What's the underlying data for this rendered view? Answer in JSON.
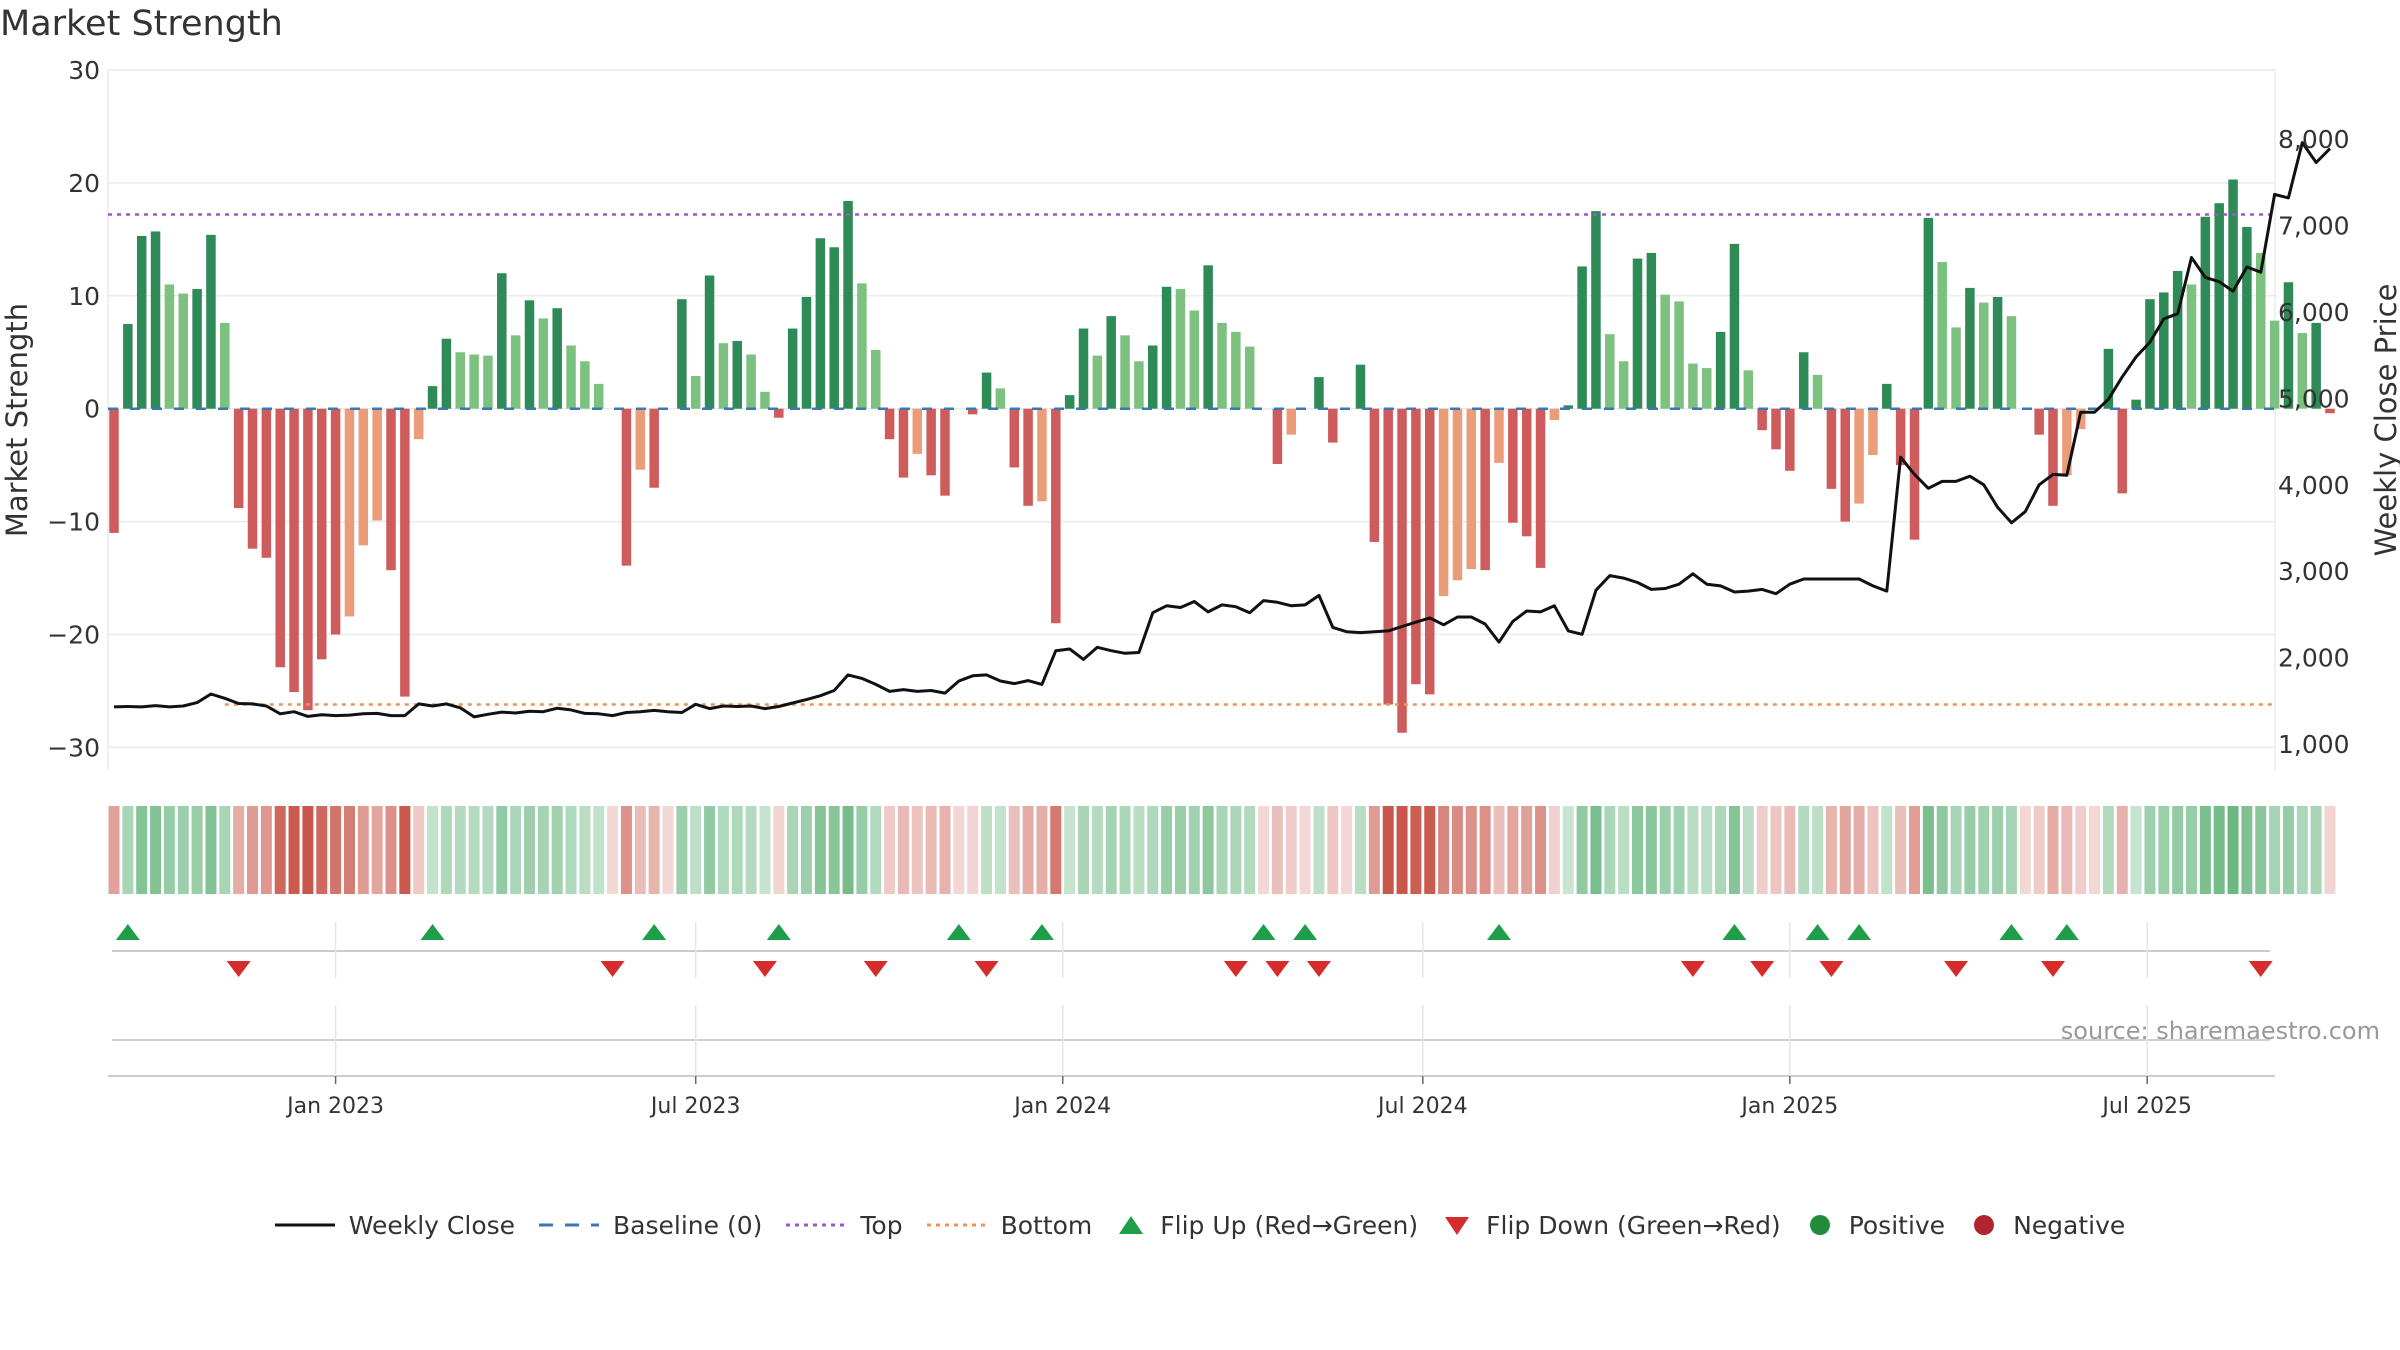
{
  "chart_data": {
    "type": "bar",
    "title": "Market Strength",
    "ylabel_left": "Market Strength",
    "ylabel_right": "Weekly Close Price",
    "source": "source: sharemaestro.com",
    "left_axis": {
      "ylim": [
        -32,
        30
      ],
      "ticks": [
        30,
        20,
        10,
        0,
        -10,
        -20,
        -30
      ],
      "tick_labels": [
        "30",
        "20",
        "10",
        "0",
        "−10",
        "−20",
        "−30"
      ]
    },
    "right_axis": {
      "ylim": [
        700,
        8800
      ],
      "ticks": [
        8000,
        7000,
        6000,
        5000,
        4000,
        3000,
        2000,
        1000
      ],
      "tick_labels": [
        "8,000",
        "7,000",
        "6,000",
        "5,000",
        "4,000",
        "3,000",
        "2,000",
        "1,000"
      ]
    },
    "x_ticks": [
      {
        "label": "Jan 2023",
        "week": 16
      },
      {
        "label": "Jul 2023",
        "week": 42
      },
      {
        "label": "Jan 2024",
        "week": 68.5
      },
      {
        "label": "Jul 2024",
        "week": 94.5
      },
      {
        "label": "Jan 2025",
        "week": 121
      },
      {
        "label": "Jul 2025",
        "week": 146.8
      }
    ],
    "top_line": 17.2,
    "bottom_line": -26.2,
    "strength": [
      -11,
      7.5,
      15.3,
      15.7,
      11,
      10.2,
      10.6,
      15.4,
      7.6,
      -8.8,
      -12.4,
      -13.2,
      -22.9,
      -25.1,
      -26.7,
      -22.2,
      -20,
      -18.4,
      -12.1,
      -9.9,
      -14.3,
      -25.5,
      -2.7,
      2,
      6.2,
      5,
      4.8,
      4.7,
      12,
      6.5,
      9.6,
      8,
      8.9,
      5.6,
      4.2,
      2.2,
      0,
      -13.9,
      -5.4,
      -7,
      0,
      9.7,
      2.9,
      11.8,
      5.8,
      6,
      4.8,
      1.5,
      -0.8,
      7.1,
      9.9,
      15.1,
      14.3,
      18.4,
      11.1,
      5.2,
      -2.7,
      -6.1,
      -4,
      -5.9,
      -7.7,
      0,
      -0.5,
      3.2,
      1.8,
      -5.2,
      -8.6,
      -8.2,
      -19,
      1.2,
      7.1,
      4.7,
      8.2,
      6.5,
      4.2,
      5.6,
      10.8,
      10.6,
      8.7,
      12.7,
      7.6,
      6.8,
      5.5,
      0,
      -4.9,
      -2.3,
      0,
      2.8,
      -3,
      0,
      3.9,
      -11.8,
      -26.2,
      -28.7,
      -24.4,
      -25.3,
      -16.6,
      -15.2,
      -14.2,
      -14.3,
      -4.8,
      -10.1,
      -11.3,
      -14.1,
      -1,
      0.3,
      12.6,
      17.5,
      6.6,
      4.2,
      13.3,
      13.8,
      10.1,
      9.5,
      4,
      3.6,
      6.8,
      14.6,
      3.4,
      -1.9,
      -3.6,
      -5.5,
      5,
      3,
      -7.1,
      -10,
      -8.4,
      -4.1,
      2.2,
      -5,
      -11.6,
      16.9,
      13,
      7.2,
      10.7,
      9.4,
      9.9,
      8.2,
      0,
      -2.3,
      -8.6,
      -5.9,
      -1.8,
      0,
      5.3,
      -7.5,
      0.8,
      9.7,
      10.3,
      12.2,
      11,
      17,
      18.2,
      20.3,
      16.1,
      13.8,
      7.8,
      11.2,
      6.7,
      7.6,
      -0.4
    ],
    "weekly_close": [
      1430,
      1435,
      1430,
      1445,
      1430,
      1440,
      1480,
      1580,
      1530,
      1470,
      1465,
      1440,
      1350,
      1375,
      1320,
      1340,
      1330,
      1335,
      1350,
      1355,
      1330,
      1330,
      1465,
      1440,
      1465,
      1420,
      1315,
      1345,
      1370,
      1360,
      1380,
      1375,
      1415,
      1395,
      1355,
      1350,
      1330,
      1365,
      1375,
      1390,
      1375,
      1365,
      1460,
      1410,
      1440,
      1435,
      1440,
      1410,
      1435,
      1475,
      1515,
      1560,
      1620,
      1800,
      1760,
      1690,
      1610,
      1630,
      1610,
      1620,
      1590,
      1730,
      1790,
      1800,
      1730,
      1700,
      1735,
      1690,
      2080,
      2100,
      1980,
      2120,
      2080,
      2050,
      2060,
      2520,
      2600,
      2580,
      2650,
      2530,
      2610,
      2590,
      2520,
      2660,
      2640,
      2600,
      2610,
      2720,
      2350,
      2300,
      2290,
      2300,
      2310,
      2360,
      2410,
      2460,
      2380,
      2470,
      2470,
      2390,
      2180,
      2420,
      2540,
      2530,
      2600,
      2310,
      2270,
      2780,
      2950,
      2920,
      2870,
      2790,
      2800,
      2850,
      2970,
      2850,
      2830,
      2760,
      2770,
      2790,
      2740,
      2850,
      2910,
      2910,
      2910,
      2910,
      2910,
      2830,
      2770,
      4320,
      4120,
      3960,
      4040,
      4040,
      4100,
      4000,
      3740,
      3560,
      3690,
      4000,
      4120,
      4110,
      4840,
      4840,
      4990,
      5250,
      5480,
      5650,
      5920,
      5980,
      6630,
      6400,
      6350,
      6240,
      6520,
      6460,
      7360,
      7320,
      7960,
      7730,
      7890
    ],
    "flip_up_weeks": [
      1,
      23,
      39,
      48,
      61,
      67,
      83,
      86,
      100,
      117,
      123,
      126,
      137,
      141
    ],
    "flip_down_weeks": [
      9,
      36,
      47,
      55,
      63,
      81,
      84,
      87,
      114,
      119,
      124,
      133,
      140,
      155
    ],
    "legend": [
      {
        "label": "Weekly Close",
        "symbol": "solid-line",
        "color": "#111111"
      },
      {
        "label": "Baseline (0)",
        "symbol": "dash-line",
        "color": "#3a78b5"
      },
      {
        "label": "Top",
        "symbol": "dotted-line",
        "color": "#9a59c7"
      },
      {
        "label": "Bottom",
        "symbol": "dotted-line",
        "color": "#e8955a"
      },
      {
        "label": "Flip Up (Red→Green)",
        "symbol": "triangle-up",
        "color": "#1f9e4a"
      },
      {
        "label": "Flip Down (Green→Red)",
        "symbol": "triangle-down",
        "color": "#d62c2c"
      },
      {
        "label": "Positive",
        "symbol": "circle",
        "color": "#238c3a"
      },
      {
        "label": "Negative",
        "symbol": "circle",
        "color": "#b0252f"
      }
    ],
    "colors": {
      "strong_positive": "#2e8a57",
      "weak_positive": "#7cc17f",
      "strong_negative": "#cf5c5c",
      "weak_negative": "#eb9c79",
      "price_line": "#111111",
      "baseline": "#3a78b5",
      "top": "#9a59c7",
      "bottom": "#e8955a",
      "grid": "#ebebeb"
    }
  }
}
